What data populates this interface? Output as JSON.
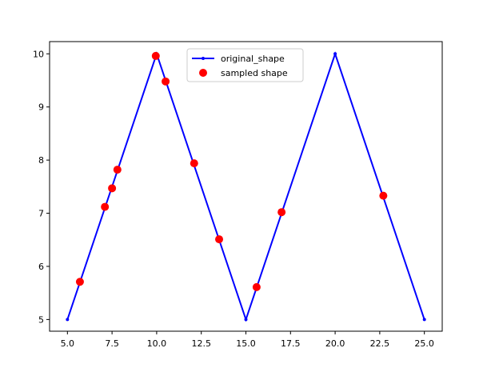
{
  "chart_data": {
    "type": "line",
    "title": "",
    "xlabel": "",
    "ylabel": "",
    "xlim": [
      4.0,
      26.0
    ],
    "ylim": [
      4.78,
      10.23
    ],
    "xticks": [
      5.0,
      7.5,
      10.0,
      12.5,
      15.0,
      17.5,
      20.0,
      22.5,
      25.0
    ],
    "xtick_labels": [
      "5.0",
      "7.5",
      "10.0",
      "12.5",
      "15.0",
      "17.5",
      "20.0",
      "22.5",
      "25.0"
    ],
    "yticks": [
      5,
      6,
      7,
      8,
      9,
      10
    ],
    "ytick_labels": [
      "5",
      "6",
      "7",
      "8",
      "9",
      "10"
    ],
    "grid": false,
    "legend_position": "top-center",
    "series": [
      {
        "name": "original_shape",
        "style": "line-with-small-markers",
        "color": "#0000ff",
        "x": [
          5,
          10,
          15,
          20,
          25
        ],
        "y": [
          5,
          10,
          5,
          10,
          5
        ]
      },
      {
        "name": "sampled shape",
        "style": "markers",
        "color": "#ff0000",
        "x": [
          5.7,
          7.1,
          7.5,
          7.8,
          9.95,
          10.5,
          12.1,
          13.5,
          15.6,
          17.0,
          22.7
        ],
        "y": [
          5.71,
          7.12,
          7.47,
          7.82,
          9.96,
          9.48,
          7.94,
          6.51,
          5.61,
          7.02,
          7.33
        ]
      }
    ]
  }
}
